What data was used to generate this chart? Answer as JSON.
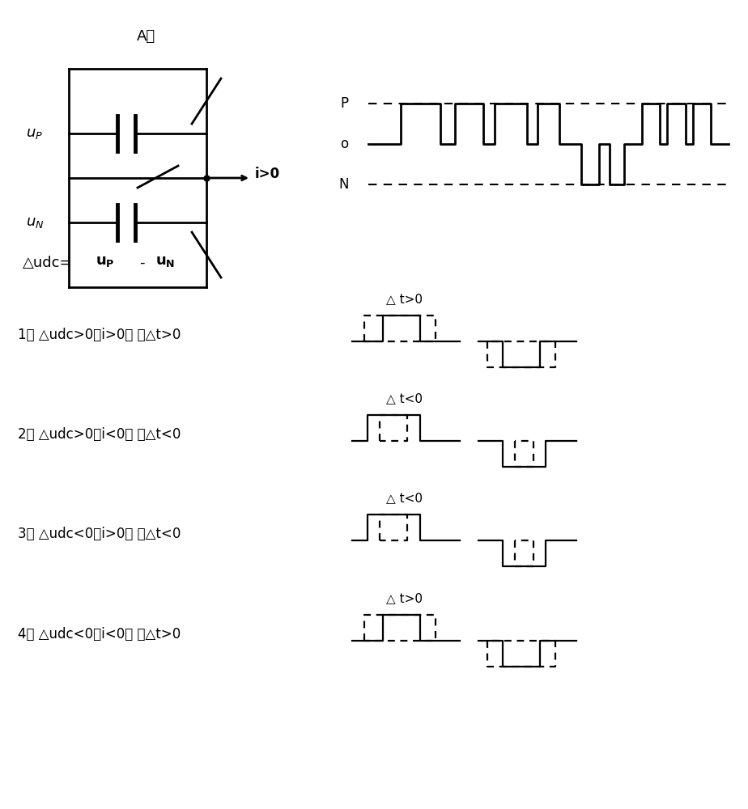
{
  "bg_color": "#ffffff",
  "text_color": "#000000",
  "cases": [
    {
      "label": "1） △udc>0且i>0， 使△t>0",
      "delta_t": "△ t>0",
      "mode": "wider"
    },
    {
      "label": "2） △udc>0且i<0， 使△t<0",
      "delta_t": "△ t<0",
      "mode": "narrower"
    },
    {
      "label": "3） △udc<0且i>0， 使△t<0",
      "delta_t": "△ t<0",
      "mode": "narrower"
    },
    {
      "label": "4） △udc<0且i<0， 使△t>0",
      "delta_t": "△ t>0",
      "mode": "wider"
    }
  ]
}
